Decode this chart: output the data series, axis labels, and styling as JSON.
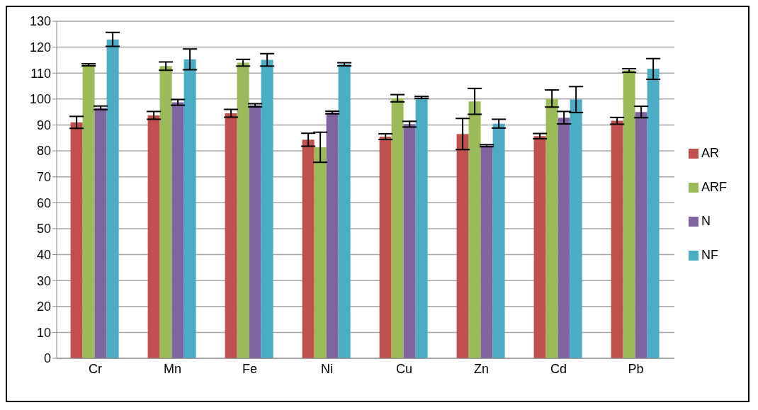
{
  "chart_data": {
    "type": "bar",
    "categories": [
      "Cr",
      "Mn",
      "Fe",
      "Ni",
      "Cu",
      "Zn",
      "Cd",
      "Pb"
    ],
    "series": [
      {
        "name": "AR",
        "color": "#c0504d",
        "values": [
          91,
          93.7,
          94.5,
          84.3,
          85.5,
          86.5,
          85.7,
          91.6
        ],
        "errors": [
          2.3,
          1.5,
          1.5,
          2.5,
          1.1,
          6,
          1,
          1.3
        ]
      },
      {
        "name": "ARF",
        "color": "#9bbb59",
        "values": [
          113.2,
          112.7,
          114,
          81.4,
          100.3,
          99.1,
          100.2,
          111
        ],
        "errors": [
          0.4,
          1.6,
          1.3,
          5.8,
          1.4,
          5,
          3.3,
          0.7
        ]
      },
      {
        "name": "N",
        "color": "#8064a2",
        "values": [
          96.6,
          98.7,
          97.6,
          94.8,
          90.3,
          82,
          92.8,
          95
        ],
        "errors": [
          0.7,
          1.1,
          0.6,
          0.5,
          1.1,
          0.4,
          2.4,
          2.2
        ]
      },
      {
        "name": "NF",
        "color": "#4bacc6",
        "values": [
          123,
          115.3,
          115.1,
          113.4,
          100.6,
          90.5,
          99.8,
          111.6
        ],
        "errors": [
          2.7,
          4,
          2.4,
          0.6,
          0.4,
          1.7,
          5,
          4
        ]
      }
    ],
    "ylim": [
      0,
      130
    ],
    "yticks": [
      0,
      10,
      20,
      30,
      40,
      50,
      60,
      70,
      80,
      90,
      100,
      110,
      120,
      130
    ],
    "grid": "y",
    "legend": "right"
  }
}
